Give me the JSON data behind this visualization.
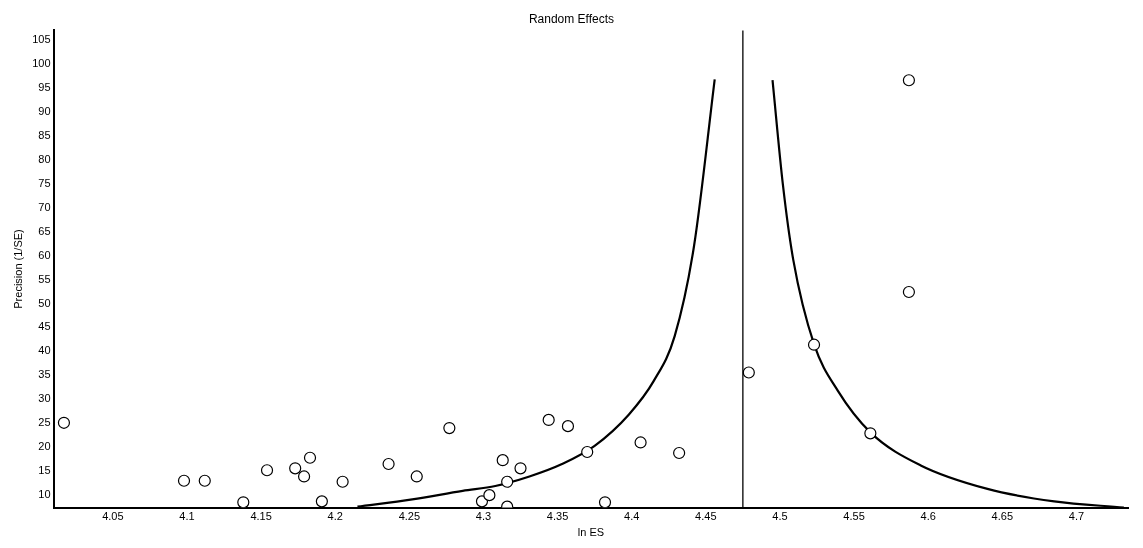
{
  "chart_data": {
    "type": "scatter",
    "title": "Random Effects",
    "xlabel": "ln ES",
    "ylabel": "Precision (1/SE)",
    "xlim": [
      4.01,
      4.735
    ],
    "xticks": [
      4.05,
      4.1,
      4.15,
      4.2,
      4.25,
      4.3,
      4.35,
      4.4,
      4.45,
      4.5,
      4.55,
      4.6,
      4.65,
      4.7
    ],
    "ylim": [
      7.4,
      107
    ],
    "yticks": [
      10,
      15,
      20,
      25,
      30,
      35,
      40,
      45,
      50,
      55,
      60,
      65,
      70,
      75,
      80,
      85,
      90,
      95,
      100,
      105
    ],
    "grid": false,
    "legend": false,
    "ref_lines": [
      {
        "axis": "x",
        "value": 4.475,
        "color": "#000000"
      }
    ],
    "series": [
      {
        "type": "scatter",
        "color": "#000000",
        "marker": "circle",
        "x": [
          4.017,
          4.098,
          4.112,
          4.138,
          4.154,
          4.173,
          4.179,
          4.183,
          4.191,
          4.205,
          4.236,
          4.255,
          4.277,
          4.313,
          4.299,
          4.304,
          4.316,
          4.316,
          4.325,
          4.344,
          4.357,
          4.37,
          4.382,
          4.406,
          4.432,
          4.479,
          4.587,
          4.587,
          4.523,
          4.561
        ],
        "values": [
          25.1,
          13,
          13,
          8.5,
          15.2,
          15.6,
          13.9,
          17.8,
          8.7,
          12.8,
          16.5,
          13.9,
          24,
          17.3,
          8.7,
          10,
          12.8,
          7.6,
          15.6,
          25.7,
          24.4,
          19,
          8.5,
          21,
          18.8,
          35.6,
          96.6,
          52.4,
          41.4,
          22.9
        ]
      },
      {
        "type": "line",
        "color": "#000000",
        "marker": "none",
        "x": [
          4.215,
          4.252,
          4.286,
          4.308,
          4.331,
          4.353,
          4.375,
          4.398,
          4.415,
          4.429,
          4.442,
          4.456
        ],
        "values": [
          7.6,
          9.1,
          10.9,
          11.9,
          13.9,
          16.5,
          20.3,
          26.8,
          33.9,
          43.2,
          61.9,
          96.8
        ]
      },
      {
        "type": "line",
        "color": "#000000",
        "marker": "none",
        "x": [
          4.495,
          4.502,
          4.509,
          4.523,
          4.539,
          4.561,
          4.595,
          4.64,
          4.685,
          4.732
        ],
        "values": [
          96.6,
          74.8,
          59.1,
          41.5,
          31.8,
          23.1,
          16.2,
          11.3,
          8.7,
          7.4
        ]
      }
    ]
  }
}
